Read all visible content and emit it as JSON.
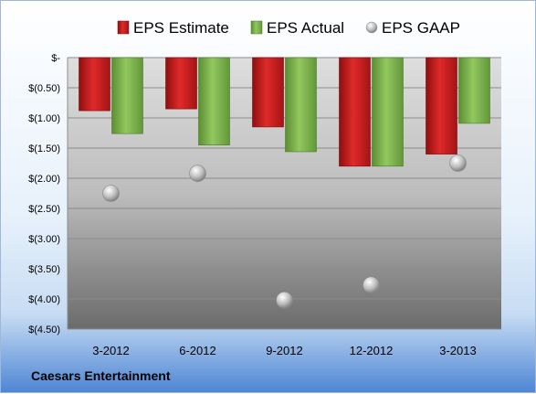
{
  "chart_data": {
    "type": "bar",
    "categories": [
      "3-2012",
      "6-2012",
      "9-2012",
      "12-2012",
      "3-2013"
    ],
    "series": [
      {
        "name": "EPS Estimate",
        "kind": "bar",
        "color": "#cc1f1f",
        "values": [
          -0.88,
          -0.85,
          -1.15,
          -1.8,
          -1.6
        ]
      },
      {
        "name": "EPS Actual",
        "kind": "bar",
        "color": "#7ab648",
        "values": [
          -1.26,
          -1.45,
          -1.56,
          -1.8,
          -1.09
        ]
      },
      {
        "name": "EPS GAAP",
        "kind": "marker",
        "color": "#bfbfbf",
        "values": [
          -2.25,
          -1.92,
          -4.02,
          -3.77,
          -1.75
        ]
      }
    ],
    "yticks": [
      {
        "value": 0,
        "label": "$-"
      },
      {
        "value": -0.5,
        "label": "$(0.50)"
      },
      {
        "value": -1.0,
        "label": "$(1.00)"
      },
      {
        "value": -1.5,
        "label": "$(1.50)"
      },
      {
        "value": -2.0,
        "label": "$(2.00)"
      },
      {
        "value": -2.5,
        "label": "$(2.50)"
      },
      {
        "value": -3.0,
        "label": "$(3.00)"
      },
      {
        "value": -3.5,
        "label": "$(3.50)"
      },
      {
        "value": -4.0,
        "label": "$(4.00)"
      },
      {
        "value": -4.5,
        "label": "$(4.50)"
      }
    ],
    "ylim": [
      -4.5,
      0
    ],
    "grid": true,
    "legend_position": "top"
  },
  "footer": {
    "company": "Caesars Entertainment"
  }
}
